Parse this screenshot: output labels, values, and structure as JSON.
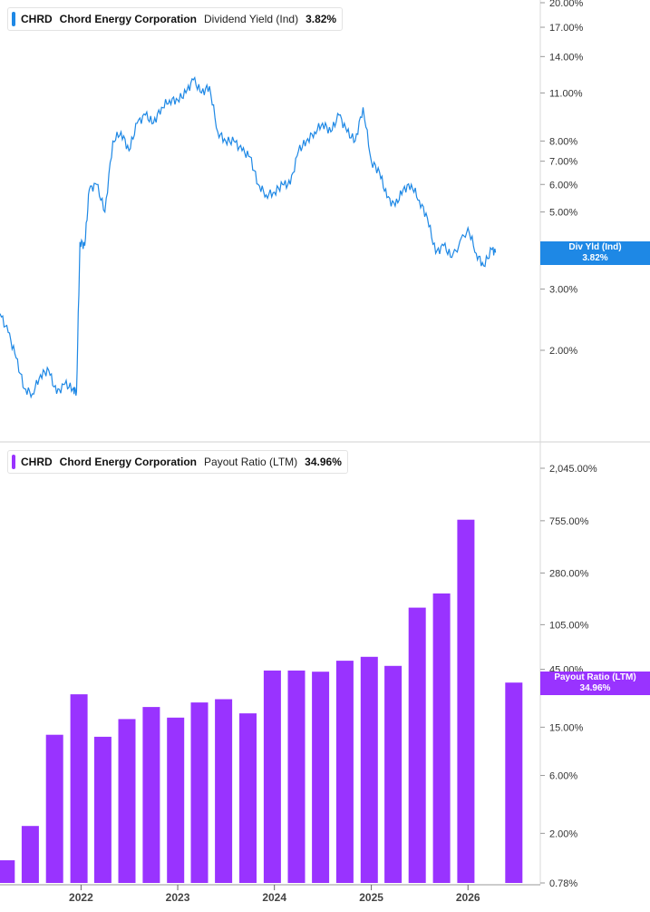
{
  "colors": {
    "yield": "#1e88e5",
    "payout": "#9933ff",
    "grid": "#e6e6e6",
    "axis": "#444444"
  },
  "panels": {
    "top": {
      "symbol": "CHRD",
      "company": "Chord Energy Corporation",
      "metric": "Dividend Yield (Ind)",
      "value": "3.82%",
      "tag_line1": "Div Yld (Ind)",
      "tag_line2": "3.82%"
    },
    "bottom": {
      "symbol": "CHRD",
      "company": "Chord Energy Corporation",
      "metric": "Payout Ratio (LTM)",
      "value": "34.96%",
      "tag_line1": "Payout Ratio (LTM)",
      "tag_line2": "34.96%"
    }
  },
  "chart_data": [
    {
      "type": "line",
      "scale": "log",
      "series": [
        {
          "name": "Dividend Yield (Ind)",
          "unit": "%",
          "points": [
            [
              "2021-03-01",
              2.55
            ],
            [
              "2021-04-01",
              2.25
            ],
            [
              "2021-05-01",
              1.9
            ],
            [
              "2021-06-01",
              1.55
            ],
            [
              "2021-07-01",
              1.5
            ],
            [
              "2021-08-01",
              1.7
            ],
            [
              "2021-09-01",
              1.75
            ],
            [
              "2021-10-01",
              1.5
            ],
            [
              "2021-11-01",
              1.6
            ],
            [
              "2021-12-01",
              1.55
            ],
            [
              "2021-12-15",
              1.52
            ],
            [
              "2021-12-28",
              4.1
            ],
            [
              "2022-01-15",
              4.0
            ],
            [
              "2022-02-01",
              5.8
            ],
            [
              "2022-03-01",
              6.0
            ],
            [
              "2022-04-01",
              5.0
            ],
            [
              "2022-05-01",
              8.0
            ],
            [
              "2022-06-01",
              8.5
            ],
            [
              "2022-07-01",
              7.5
            ],
            [
              "2022-08-01",
              9.0
            ],
            [
              "2022-09-01",
              9.5
            ],
            [
              "2022-10-01",
              9.0
            ],
            [
              "2022-11-01",
              10.0
            ],
            [
              "2022-12-01",
              10.5
            ],
            [
              "2023-01-01",
              10.5
            ],
            [
              "2023-02-01",
              11.0
            ],
            [
              "2023-03-01",
              12.0
            ],
            [
              "2023-04-01",
              11.0
            ],
            [
              "2023-05-01",
              11.5
            ],
            [
              "2023-06-01",
              8.5
            ],
            [
              "2023-07-01",
              8.0
            ],
            [
              "2023-08-01",
              8.0
            ],
            [
              "2023-09-01",
              7.5
            ],
            [
              "2023-10-01",
              7.2
            ],
            [
              "2023-11-01",
              6.0
            ],
            [
              "2023-12-01",
              5.6
            ],
            [
              "2024-01-01",
              5.7
            ],
            [
              "2024-02-01",
              6.0
            ],
            [
              "2024-03-01",
              6.0
            ],
            [
              "2024-04-01",
              7.5
            ],
            [
              "2024-05-01",
              8.0
            ],
            [
              "2024-06-01",
              8.5
            ],
            [
              "2024-07-01",
              9.0
            ],
            [
              "2024-08-01",
              8.5
            ],
            [
              "2024-09-01",
              9.5
            ],
            [
              "2024-10-01",
              8.5
            ],
            [
              "2024-11-01",
              8.0
            ],
            [
              "2024-12-01",
              10.0
            ],
            [
              "2025-01-01",
              7.0
            ],
            [
              "2025-02-01",
              6.5
            ],
            [
              "2025-03-01",
              5.5
            ],
            [
              "2025-04-01",
              5.2
            ],
            [
              "2025-05-01",
              5.8
            ],
            [
              "2025-06-01",
              6.0
            ],
            [
              "2025-07-01",
              5.4
            ],
            [
              "2025-08-01",
              4.8
            ],
            [
              "2025-09-01",
              3.8
            ],
            [
              "2025-10-01",
              4.0
            ],
            [
              "2025-11-01",
              3.7
            ],
            [
              "2026-01-01",
              4.5
            ],
            [
              "2026-02-01",
              3.8
            ],
            [
              "2026-03-01",
              3.5
            ],
            [
              "2026-04-01",
              3.9
            ],
            [
              "2026-04-15",
              3.82
            ]
          ]
        }
      ],
      "yaxis": {
        "tick_values": [
          20,
          17,
          14,
          11,
          8,
          7,
          6,
          5,
          3,
          2
        ],
        "tick_labels": [
          "20.00%",
          "17.00%",
          "14.00%",
          "11.00%",
          "8.00%",
          "7.00%",
          "6.00%",
          "5.00%",
          "3.00%",
          "2.00%"
        ]
      }
    },
    {
      "type": "bar",
      "scale": "log",
      "series": [
        {
          "name": "Payout Ratio (LTM)",
          "unit": "%",
          "points": [
            [
              "2021-03-31",
              1.2
            ],
            [
              "2021-06-30",
              2.3
            ],
            [
              "2021-09-30",
              13
            ],
            [
              "2021-12-31",
              28
            ],
            [
              "2022-03-31",
              12.5
            ],
            [
              "2022-06-30",
              17.5
            ],
            [
              "2022-09-30",
              22
            ],
            [
              "2022-12-31",
              18
            ],
            [
              "2023-03-31",
              24
            ],
            [
              "2023-06-30",
              25.5
            ],
            [
              "2023-09-30",
              19.5
            ],
            [
              "2023-12-31",
              44
            ],
            [
              "2024-03-31",
              44
            ],
            [
              "2024-06-30",
              43
            ],
            [
              "2024-09-30",
              53
            ],
            [
              "2024-12-31",
              57
            ],
            [
              "2025-03-31",
              48
            ],
            [
              "2025-06-30",
              145
            ],
            [
              "2025-09-30",
              190
            ],
            [
              "2025-12-31",
              770
            ],
            [
              "2026-06-30",
              34.96
            ]
          ]
        }
      ],
      "yaxis": {
        "tick_values": [
          2045,
          755,
          280,
          105,
          45,
          15,
          6,
          2,
          0.78
        ],
        "tick_labels": [
          "2,045.00%",
          "755.00%",
          "280.00%",
          "105.00%",
          "45.00%",
          "15.00%",
          "6.00%",
          "2.00%",
          "0.78%"
        ]
      }
    }
  ],
  "x_axis": {
    "ticks": [
      {
        "date": "2022-01-01",
        "label": "2022"
      },
      {
        "date": "2023-01-01",
        "label": "2023"
      },
      {
        "date": "2024-01-01",
        "label": "2024"
      },
      {
        "date": "2025-01-01",
        "label": "2025"
      },
      {
        "date": "2026-01-01",
        "label": "2026"
      }
    ]
  }
}
